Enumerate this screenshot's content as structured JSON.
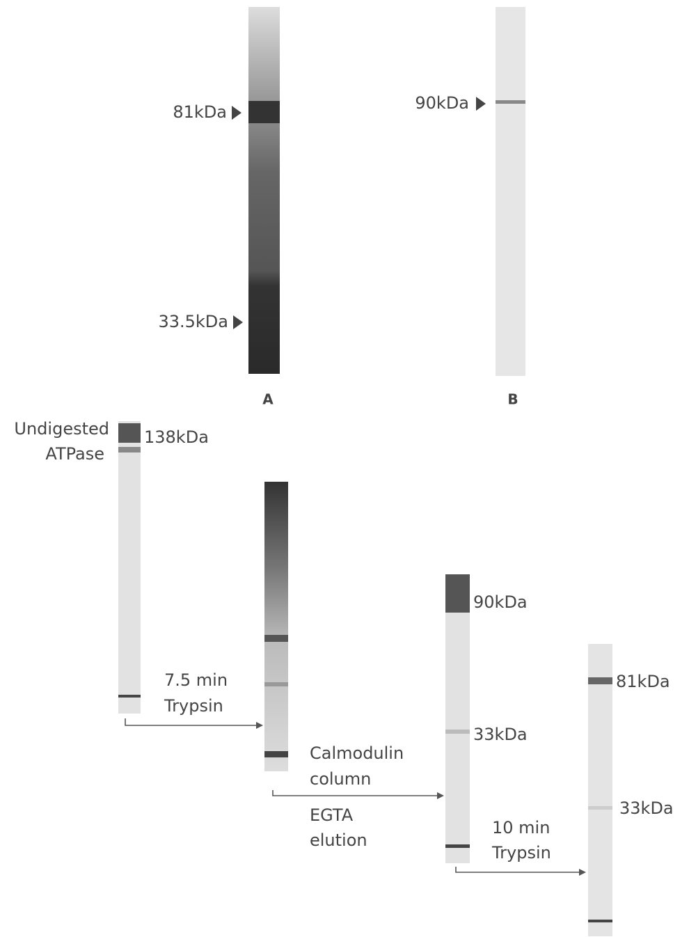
{
  "panel_a": {
    "markers": [
      "81kDa",
      "33.5kDa"
    ],
    "label": "A"
  },
  "panel_b": {
    "markers": [
      "90kDa"
    ],
    "label": "B"
  },
  "digestion": {
    "undigested": {
      "label": [
        "Undigested",
        "ATPase"
      ],
      "marker": "138kDa"
    },
    "step_1": [
      "7.5 min",
      "Trypsin"
    ],
    "step_2": [
      "Calmodulin",
      "column",
      "EGTA",
      "elution"
    ],
    "lane_3_markers": [
      "90kDa",
      "33kDa"
    ],
    "step_3": [
      "10 min",
      "Trypsin"
    ],
    "lane_4_markers": [
      "81kDa",
      "33kDa"
    ]
  }
}
